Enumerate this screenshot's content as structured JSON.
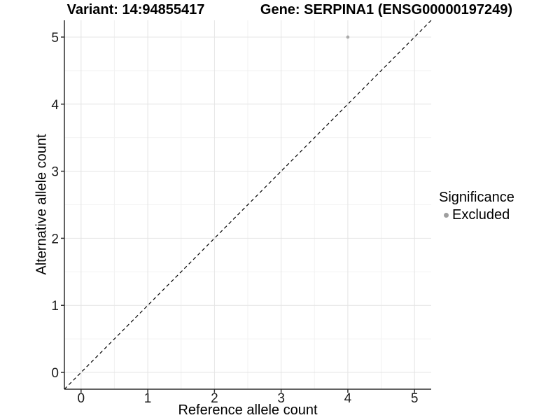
{
  "chart_data": {
    "type": "scatter",
    "title_left": "Variant: 14:94855417",
    "title_right": "Gene: SERPINA1 (ENSG00000197249)",
    "xlabel": "Reference allele count",
    "ylabel": "Alternative allele count",
    "xlim": [
      -0.25,
      5.25
    ],
    "ylim": [
      -0.25,
      5.25
    ],
    "x_ticks": [
      0,
      1,
      2,
      3,
      4,
      5
    ],
    "y_ticks": [
      0,
      1,
      2,
      3,
      4,
      5
    ],
    "x_minor": [
      0.5,
      1.5,
      2.5,
      3.5,
      4.5
    ],
    "y_minor": [
      0.5,
      1.5,
      2.5,
      3.5,
      4.5
    ],
    "grid": true,
    "legend_position": "right",
    "series": [
      {
        "name": "Excluded",
        "color": "#aaaaaa",
        "points": [
          {
            "x": 4,
            "y": 5
          }
        ]
      }
    ],
    "reference_line": {
      "slope": 1,
      "intercept": 0,
      "style": "dashed",
      "color": "#000000"
    },
    "legend": {
      "title": "Significance",
      "items": [
        {
          "label": "Excluded",
          "color": "#9e9e9e"
        }
      ]
    },
    "colors": {
      "grid_major": "#e4e4e4",
      "grid_minor": "#f2f2f2",
      "axis": "#2f2f2f",
      "tick_label": "#1a1a1a",
      "point": "#ababab"
    }
  }
}
